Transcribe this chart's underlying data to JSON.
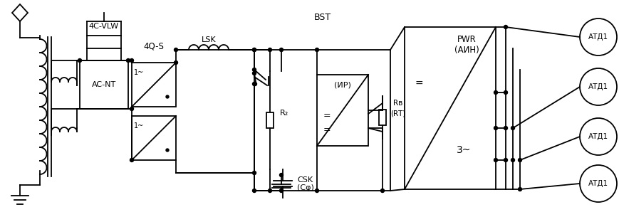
{
  "bg_color": "#ffffff",
  "lc": "#000000",
  "lw": 1.3,
  "fw": 8.7,
  "fh": 3.05,
  "dpi": 100,
  "labels": {
    "vlw": "4C-VLW",
    "acnt": "AC-NT",
    "qs": "4Q-S",
    "lsk": "LSK",
    "bst": "BST",
    "pwr": "PWR",
    "ain": "(АИН)",
    "ir": "(ИР)",
    "r2": "R₂",
    "csk": "CSK",
    "cf": "(Cφ)",
    "rb": "Rв",
    "rt": "(RТ)",
    "atd1": "АТД1",
    "one_tilde": "1~",
    "dot_sym": "▪",
    "eq": "=",
    "three_tilde": "3~"
  }
}
